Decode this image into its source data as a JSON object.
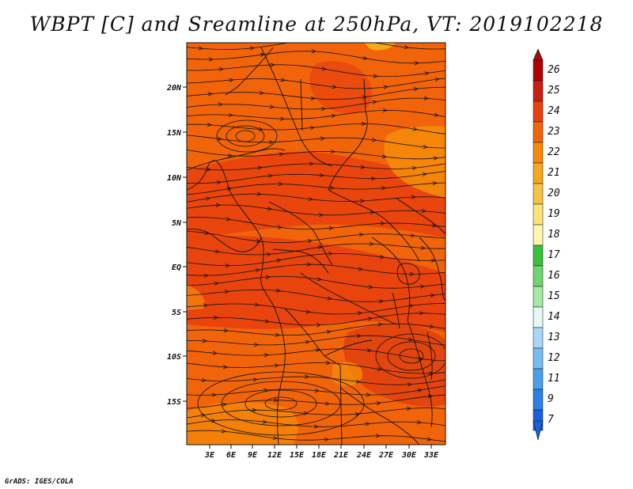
{
  "title": "WBPT [C] and Sreamline at 250hPa, VT: 2019102218",
  "footer": "GrADS: IGES/COLA",
  "map": {
    "lat_ticks": [
      "20N",
      "15N",
      "10N",
      "5N",
      "EQ",
      "5S",
      "10S",
      "15S"
    ],
    "lon_ticks": [
      "3E",
      "6E",
      "9E",
      "12E",
      "15E",
      "18E",
      "21E",
      "24E",
      "27E",
      "30E",
      "33E"
    ],
    "background_color": "#f2640a",
    "field_colors": {
      "warm_24": "#e8400e",
      "warm_23": "#f2640a",
      "warm_22": "#f58a0a",
      "warm_21": "#f5a81a",
      "warm_20": "#f7c244"
    }
  },
  "colorbar": {
    "labels": [
      "26",
      "25",
      "24",
      "23",
      "22",
      "21",
      "20",
      "19",
      "18",
      "17",
      "16",
      "15",
      "14",
      "13",
      "12",
      "11",
      "9",
      "7"
    ],
    "colors": [
      "#b00000",
      "#cc1e10",
      "#e8400e",
      "#f2640a",
      "#f58a0a",
      "#f5a81a",
      "#f7c244",
      "#fbe27a",
      "#fff5b0",
      "#3cbf3c",
      "#6fd66f",
      "#a4e8a4",
      "#e4f8f4",
      "#a8d7f5",
      "#78bdf0",
      "#4aa0ea",
      "#2d7fe0",
      "#1a60d8"
    ],
    "top_arrow_color": "#a01010",
    "bottom_arrow_color": "#1a60d8"
  }
}
